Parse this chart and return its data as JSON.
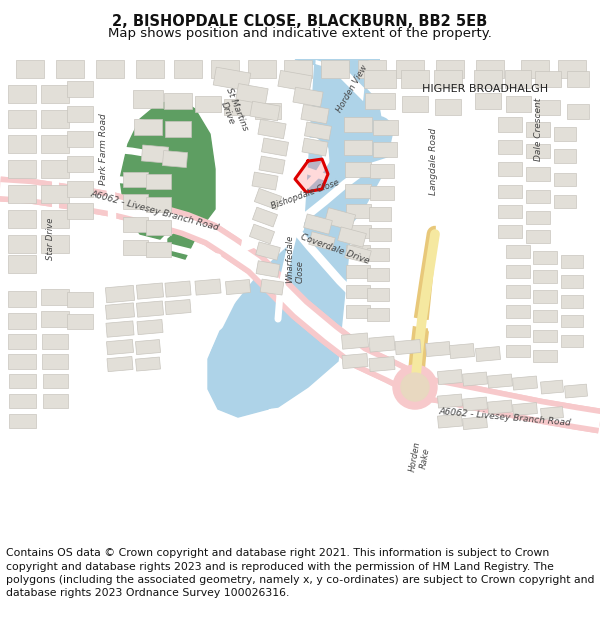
{
  "title": "2, BISHOPDALE CLOSE, BLACKBURN, BB2 5EB",
  "subtitle": "Map shows position and indicative extent of the property.",
  "footer": "Contains OS data © Crown copyright and database right 2021. This information is subject to Crown copyright and database rights 2023 and is reproduced with the permission of HM Land Registry. The polygons (including the associated geometry, namely x, y co-ordinates) are subject to Crown copyright and database rights 2023 Ordnance Survey 100026316.",
  "title_fontsize": 10.5,
  "subtitle_fontsize": 9.5,
  "footer_fontsize": 7.8,
  "bg_color": "#ffffff",
  "map_bg": "#f0eeea",
  "building_color": "#e2dfd8",
  "building_edge": "#c8c5be",
  "water_color": "#aed3e8",
  "green_color": "#5e9e62",
  "highlight_color": "#dd0000",
  "road_main_color": "#f7c9cb",
  "road_white": "#ffffff",
  "text_color": "#333333"
}
